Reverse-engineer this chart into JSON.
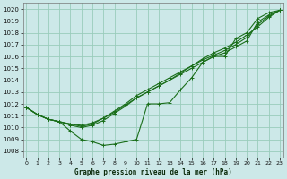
{
  "title": "Graphe pression niveau de la mer (hPa)",
  "background_color": "#cce8e8",
  "grid_color": "#99ccbb",
  "line_color": "#1a6e1a",
  "xlim": [
    -0.3,
    23.3
  ],
  "ylim": [
    1007.5,
    1020.5
  ],
  "yticks": [
    1008,
    1009,
    1010,
    1011,
    1012,
    1013,
    1014,
    1015,
    1016,
    1017,
    1018,
    1019,
    1020
  ],
  "xticks": [
    0,
    1,
    2,
    3,
    4,
    5,
    6,
    7,
    8,
    9,
    10,
    11,
    12,
    13,
    14,
    15,
    16,
    17,
    18,
    19,
    20,
    21,
    22,
    23
  ],
  "s1": [
    1011.7,
    1011.1,
    1010.7,
    1010.5,
    1009.7,
    1009.0,
    1008.8,
    1008.5,
    1008.6,
    1008.8,
    1009.0,
    1012.0,
    1012.0,
    1012.1,
    1013.2,
    1014.2,
    1015.5,
    1016.0,
    1016.0,
    1017.5,
    1018.0,
    1019.2,
    1019.7,
    1019.9
  ],
  "s2": [
    1011.7,
    1011.1,
    1010.7,
    1010.5,
    1010.3,
    1010.2,
    1010.4,
    1010.8,
    1011.3,
    1011.9,
    1012.5,
    1013.0,
    1013.5,
    1014.0,
    1014.6,
    1015.2,
    1015.8,
    1016.3,
    1016.7,
    1017.2,
    1017.8,
    1018.5,
    1019.3,
    1019.9
  ],
  "s3": [
    1011.7,
    1011.1,
    1010.7,
    1010.5,
    1010.3,
    1010.1,
    1010.3,
    1010.8,
    1011.4,
    1012.0,
    1012.7,
    1013.2,
    1013.7,
    1014.2,
    1014.7,
    1015.2,
    1015.7,
    1016.1,
    1016.5,
    1017.0,
    1017.6,
    1018.7,
    1019.4,
    1019.9
  ],
  "s4": [
    1011.7,
    1011.1,
    1010.7,
    1010.5,
    1010.2,
    1010.0,
    1010.2,
    1010.6,
    1011.2,
    1011.8,
    1012.5,
    1013.0,
    1013.5,
    1014.0,
    1014.5,
    1015.0,
    1015.5,
    1016.0,
    1016.3,
    1016.8,
    1017.3,
    1018.9,
    1019.5,
    1019.9
  ]
}
